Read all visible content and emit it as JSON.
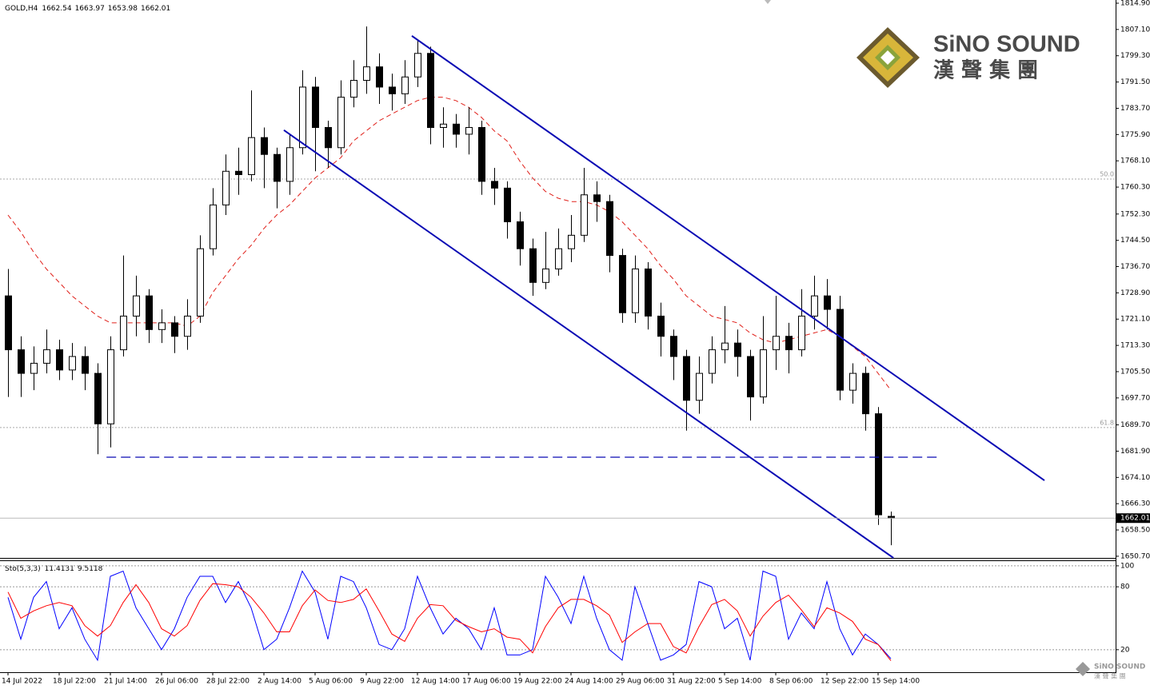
{
  "logo": {
    "name": "SiNO SOUND",
    "chinese": "漢 聲 集 團"
  },
  "chart_data": [
    {
      "type": "candlestick",
      "symbol": "GOLD,H4",
      "open": [
        1728,
        1712,
        1705,
        1708,
        1712,
        1706,
        1710,
        1705,
        1690,
        1712,
        1722,
        1728,
        1718,
        1720,
        1716,
        1722,
        1742,
        1755,
        1765,
        1764,
        1775,
        1770,
        1762,
        1772,
        1790,
        1778,
        1772,
        1787,
        1792,
        1796,
        1790,
        1788,
        1793,
        1800,
        1778,
        1779,
        1776,
        1778,
        1762,
        1760,
        1750,
        1742,
        1732,
        1736,
        1742,
        1746,
        1758,
        1756,
        1740,
        1723,
        1736,
        1722,
        1716,
        1710,
        1697,
        1705,
        1712,
        1714,
        1710,
        1698,
        1712,
        1716,
        1712,
        1722,
        1728,
        1724,
        1700,
        1705,
        1693,
        1662.54
      ],
      "high": [
        1736,
        1716,
        1713,
        1718,
        1715,
        1714,
        1713,
        1708,
        1716,
        1740,
        1734,
        1730,
        1724,
        1722,
        1727,
        1746,
        1760,
        1770,
        1772,
        1789,
        1778,
        1772,
        1776,
        1795,
        1793,
        1780,
        1792,
        1798,
        1808,
        1800,
        1794,
        1798,
        1804,
        1802,
        1784,
        1782,
        1784,
        1780,
        1766,
        1762,
        1753,
        1745,
        1747,
        1748,
        1752,
        1766,
        1762,
        1758,
        1742,
        1740,
        1738,
        1726,
        1718,
        1712,
        1710,
        1716,
        1725,
        1718,
        1712,
        1722,
        1728,
        1720,
        1730,
        1734,
        1733,
        1728,
        1708,
        1707,
        1695,
        1663.97
      ],
      "low": [
        1698,
        1698,
        1700,
        1705,
        1703,
        1703,
        1700,
        1681,
        1683,
        1710,
        1716,
        1714,
        1714,
        1711,
        1712,
        1720,
        1740,
        1752,
        1758,
        1762,
        1760,
        1754,
        1758,
        1770,
        1765,
        1766,
        1770,
        1784,
        1788,
        1785,
        1783,
        1785,
        1790,
        1773,
        1772,
        1772,
        1770,
        1758,
        1755,
        1745,
        1737,
        1728,
        1730,
        1734,
        1738,
        1744,
        1750,
        1735,
        1720,
        1720,
        1718,
        1710,
        1703,
        1688,
        1693,
        1702,
        1708,
        1704,
        1691,
        1696,
        1706,
        1705,
        1710,
        1718,
        1718,
        1697,
        1696,
        1688,
        1660,
        1653.98
      ],
      "close": [
        1712,
        1705,
        1708,
        1712,
        1706,
        1710,
        1705,
        1690,
        1712,
        1722,
        1728,
        1718,
        1720,
        1716,
        1722,
        1742,
        1755,
        1765,
        1764,
        1775,
        1770,
        1762,
        1772,
        1790,
        1778,
        1772,
        1787,
        1792,
        1796,
        1790,
        1788,
        1793,
        1800,
        1778,
        1779,
        1776,
        1778,
        1762,
        1760,
        1750,
        1742,
        1732,
        1736,
        1742,
        1746,
        1758,
        1756,
        1740,
        1723,
        1736,
        1722,
        1716,
        1710,
        1697,
        1705,
        1712,
        1714,
        1710,
        1698,
        1712,
        1716,
        1712,
        1722,
        1728,
        1724,
        1700,
        1705,
        1693,
        1663,
        1662.01
      ],
      "color_up": "#ffffff",
      "color_down": "#000000",
      "overlays": [
        {
          "color": "#e0201a",
          "values": [
            1752,
            1747,
            1741,
            1736,
            1732,
            1728,
            1725,
            1722,
            1720,
            1720,
            1720,
            1720,
            1720,
            1720,
            1719,
            1722,
            1729,
            1734,
            1739,
            1743,
            1748,
            1752,
            1755,
            1759,
            1763,
            1766,
            1769,
            1774,
            1777,
            1780,
            1782,
            1784,
            1786,
            1787,
            1787,
            1786,
            1784,
            1781,
            1777,
            1774,
            1768,
            1763,
            1759,
            1757,
            1756,
            1756,
            1755,
            1753,
            1750,
            1746,
            1742,
            1737,
            1733,
            1728,
            1725,
            1722,
            1721,
            1720,
            1717,
            1715,
            1714,
            1715,
            1716,
            1717,
            1718,
            1716,
            1713,
            1710,
            1705,
            1700
          ]
        }
      ],
      "trendlines": [
        {
          "x": [
            31.56,
            81
          ],
          "y": [
            1805.2,
            1673.2
          ],
          "color": "#0a0ab4"
        },
        {
          "x": [
            21.56,
            69.2
          ],
          "y": [
            1777.2,
            1650.2
          ],
          "color": "#0a0ab4"
        },
        {
          "x": [
            7.7,
            72.7
          ],
          "y": [
            1680.1,
            1680.1
          ],
          "color": "#0a0ab4",
          "dash": true
        }
      ],
      "levels": [
        {
          "label": "50.0",
          "value": 1762.7
        },
        {
          "label": "61.8",
          "value": 1688.9
        }
      ],
      "xlim": [
        -0.625,
        86.5625
      ],
      "ylim": [
        1650.2,
        1815.85
      ],
      "yticks": [
        {
          "value": 1814.9,
          "label": "1814.90"
        },
        {
          "value": 1807.1,
          "label": "1807.10"
        },
        {
          "value": 1799.3,
          "label": "1799.30"
        },
        {
          "value": 1791.5,
          "label": "1791.50"
        },
        {
          "value": 1783.7,
          "label": "1783.70"
        },
        {
          "value": 1775.9,
          "label": "1775.90"
        },
        {
          "value": 1768.1,
          "label": "1768.10"
        },
        {
          "value": 1760.3,
          "label": "1760.30"
        },
        {
          "value": 1752.3,
          "label": "1752.30"
        },
        {
          "value": 1744.5,
          "label": "1744.50"
        },
        {
          "value": 1736.7,
          "label": "1736.70"
        },
        {
          "value": 1728.9,
          "label": "1728.90"
        },
        {
          "value": 1721.1,
          "label": "1721.10"
        },
        {
          "value": 1713.3,
          "label": "1713.30"
        },
        {
          "value": 1705.5,
          "label": "1705.50"
        },
        {
          "value": 1697.7,
          "label": "1697.70"
        },
        {
          "value": 1689.7,
          "label": "1689.70"
        },
        {
          "value": 1681.9,
          "label": "1681.90"
        },
        {
          "value": 1674.1,
          "label": "1674.10"
        },
        {
          "value": 1666.3,
          "label": "1666.30"
        },
        {
          "value": 1658.5,
          "label": "1658.50"
        },
        {
          "value": 1650.7,
          "label": "1650.70"
        }
      ]
    },
    {
      "type": "line",
      "label": "Sto(5,3,3)",
      "categories": [
        "14 Jul 2022",
        null,
        null,
        null,
        "18 Jul 22:00",
        null,
        null,
        null,
        "21 Jul 14:00",
        null,
        null,
        null,
        "26 Jul 06:00",
        null,
        null,
        null,
        "28 Jul 22:00",
        null,
        null,
        null,
        "2 Aug 14:00",
        null,
        null,
        null,
        "5 Aug 06:00",
        null,
        null,
        null,
        "9 Aug 22:00",
        null,
        null,
        null,
        "12 Aug 14:00",
        null,
        null,
        null,
        "17 Aug 06:00",
        null,
        null,
        null,
        "19 Aug 22:00",
        null,
        null,
        null,
        "24 Aug 14:00",
        null,
        null,
        null,
        "29 Aug 06:00",
        null,
        null,
        null,
        "31 Aug 22:00",
        null,
        null,
        null,
        "5 Sep 14:00",
        null,
        null,
        null,
        "8 Sep 06:00",
        null,
        null,
        null,
        "12 Sep 22:00",
        null,
        null,
        null,
        "15 Sep 14:00",
        null
      ],
      "series": [
        {
          "color": "#0000ff",
          "values": [
            70,
            30,
            70,
            85,
            40,
            60,
            30,
            10,
            90,
            95,
            60,
            40,
            20,
            40,
            70,
            90,
            90,
            65,
            85,
            60,
            20,
            30,
            60,
            95,
            75,
            30,
            90,
            85,
            60,
            25,
            20,
            40,
            90,
            60,
            35,
            50,
            40,
            20,
            60,
            15,
            15,
            20,
            90,
            70,
            45,
            90,
            50,
            20,
            10,
            80,
            45,
            10,
            15,
            25,
            85,
            80,
            40,
            50,
            10,
            95,
            90,
            30,
            55,
            40,
            85,
            40,
            15,
            35,
            25,
            11.4131
          ]
        },
        {
          "color": "#ff0000",
          "values": [
            75,
            50,
            57,
            62,
            65,
            62,
            43,
            33,
            43,
            65,
            82,
            65,
            40,
            33,
            43,
            67,
            83,
            82,
            80,
            70,
            55,
            37,
            37,
            62,
            77,
            67,
            65,
            68,
            78,
            57,
            35,
            28,
            50,
            63,
            62,
            48,
            42,
            37,
            40,
            32,
            30,
            17,
            42,
            60,
            68,
            68,
            62,
            53,
            27,
            37,
            45,
            45,
            23,
            17,
            42,
            63,
            68,
            57,
            33,
            52,
            65,
            72,
            58,
            42,
            60,
            55,
            47,
            30,
            25,
            9.5118
          ]
        }
      ],
      "xlim": [
        -0.625,
        86.5625
      ],
      "ylim": [
        -0.7,
        104.5
      ],
      "yticks": [
        20,
        80,
        100
      ]
    }
  ]
}
